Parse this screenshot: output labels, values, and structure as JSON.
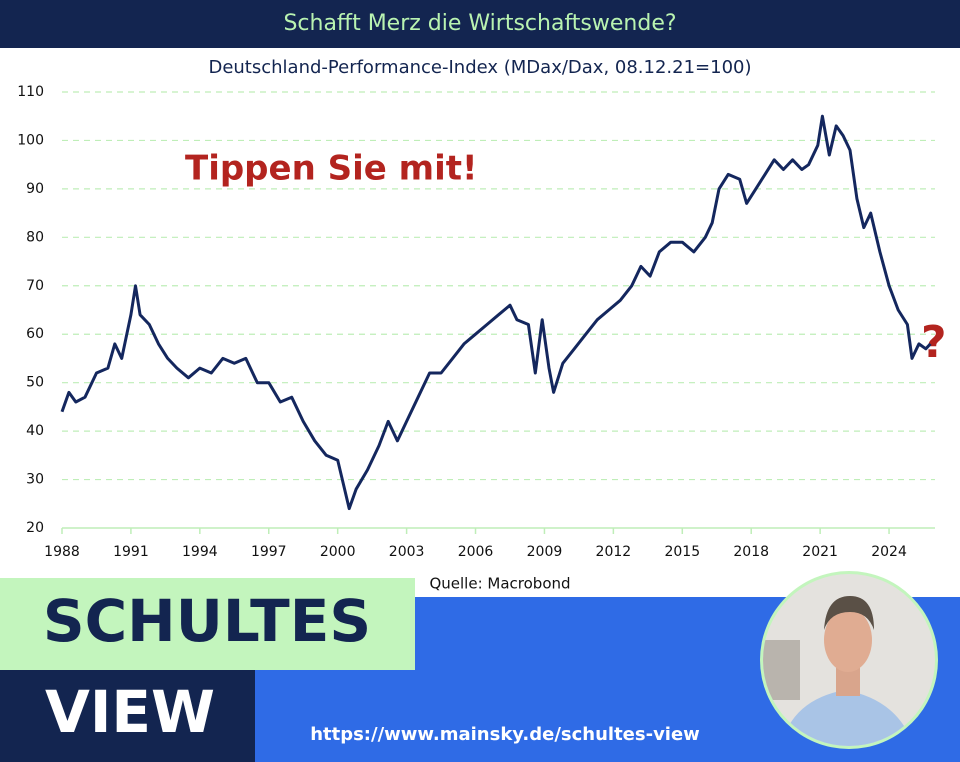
{
  "chart_data": {
    "type": "line",
    "title": "Schafft Merz die Wirtschaftswende?",
    "subtitle": "Deutschland-Performance-Index (MDax/Dax, 08.12.21=100)",
    "annotations": [
      "Tippen Sie mit!",
      "?"
    ],
    "source": "Quelle: Macrobond",
    "color": "#14275e",
    "grid": true,
    "xlim": [
      1988,
      2026
    ],
    "ylim": [
      20,
      110
    ],
    "xticks": [
      1988,
      1991,
      1994,
      1997,
      2000,
      2003,
      2006,
      2009,
      2012,
      2015,
      2018,
      2021,
      2024
    ],
    "yticks": [
      20,
      30,
      40,
      50,
      60,
      70,
      80,
      90,
      100,
      110
    ],
    "x": [
      1988.0,
      1988.3,
      1988.6,
      1989.0,
      1989.5,
      1990.0,
      1990.3,
      1990.6,
      1991.0,
      1991.2,
      1991.4,
      1991.8,
      1992.2,
      1992.6,
      1993.0,
      1993.5,
      1994.0,
      1994.5,
      1995.0,
      1995.5,
      1996.0,
      1996.5,
      1997.0,
      1997.5,
      1998.0,
      1998.5,
      1999.0,
      1999.5,
      2000.0,
      2000.3,
      2000.5,
      2000.8,
      2001.3,
      2001.8,
      2002.2,
      2002.6,
      2003.0,
      2003.5,
      2004.0,
      2004.5,
      2005.0,
      2005.5,
      2006.0,
      2006.5,
      2007.0,
      2007.5,
      2007.8,
      2008.3,
      2008.6,
      2008.9,
      2009.2,
      2009.4,
      2009.8,
      2010.3,
      2010.8,
      2011.3,
      2011.8,
      2012.3,
      2012.8,
      2013.2,
      2013.6,
      2014.0,
      2014.5,
      2015.0,
      2015.5,
      2016.0,
      2016.3,
      2016.6,
      2017.0,
      2017.5,
      2017.8,
      2018.2,
      2018.6,
      2019.0,
      2019.4,
      2019.8,
      2020.2,
      2020.5,
      2020.9,
      2021.1,
      2021.4,
      2021.7,
      2022.0,
      2022.3,
      2022.6,
      2022.9,
      2023.2,
      2023.6,
      2024.0,
      2024.4,
      2024.8,
      2025.0,
      2025.3,
      2025.6,
      2025.8
    ],
    "values": [
      44,
      48,
      46,
      47,
      52,
      53,
      58,
      55,
      64,
      70,
      64,
      62,
      58,
      55,
      53,
      51,
      53,
      52,
      55,
      54,
      55,
      50,
      50,
      46,
      47,
      42,
      38,
      35,
      34,
      28,
      24,
      28,
      32,
      37,
      42,
      38,
      42,
      47,
      52,
      52,
      55,
      58,
      60,
      62,
      64,
      66,
      63,
      62,
      52,
      63,
      53,
      48,
      54,
      57,
      60,
      63,
      65,
      67,
      70,
      74,
      72,
      77,
      79,
      79,
      77,
      80,
      83,
      90,
      93,
      92,
      87,
      90,
      93,
      96,
      94,
      96,
      94,
      95,
      99,
      105,
      97,
      103,
      101,
      98,
      88,
      82,
      85,
      77,
      70,
      65,
      62,
      55,
      58,
      57,
      58
    ]
  },
  "brand": {
    "name": [
      "SCHULTES",
      "VIEW"
    ],
    "url": "https://www.mainsky.de/schultes-view"
  }
}
